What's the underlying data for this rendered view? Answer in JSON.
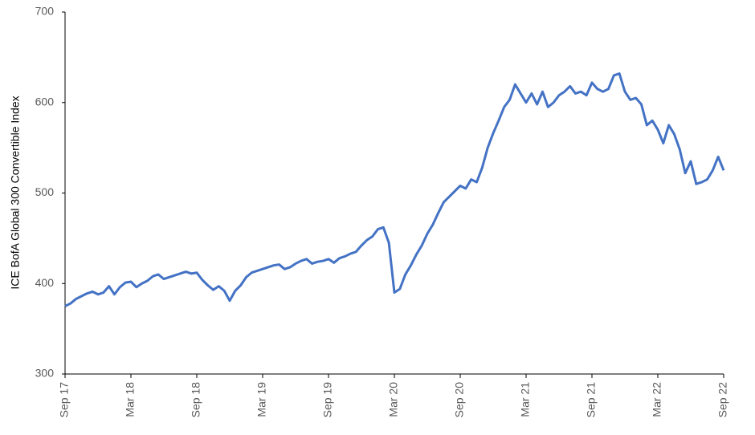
{
  "chart_data": {
    "type": "line",
    "y_label": "ICE BofA Global 300 Convertible Index",
    "categories": [
      "Sep 17",
      null,
      null,
      null,
      null,
      null,
      null,
      null,
      null,
      null,
      null,
      null,
      "Mar 18",
      null,
      null,
      null,
      null,
      null,
      null,
      null,
      null,
      null,
      null,
      null,
      "Sep 18",
      null,
      null,
      null,
      null,
      null,
      null,
      null,
      null,
      null,
      null,
      null,
      "Mar 19",
      null,
      null,
      null,
      null,
      null,
      null,
      null,
      null,
      null,
      null,
      null,
      "Sep 19",
      null,
      null,
      null,
      null,
      null,
      null,
      null,
      null,
      null,
      null,
      null,
      "Mar 20",
      null,
      null,
      null,
      null,
      null,
      null,
      null,
      null,
      null,
      null,
      null,
      "Sep 20",
      null,
      null,
      null,
      null,
      null,
      null,
      null,
      null,
      null,
      null,
      null,
      "Mar 21",
      null,
      null,
      null,
      null,
      null,
      null,
      null,
      null,
      null,
      null,
      null,
      "Sep 21",
      null,
      null,
      null,
      null,
      null,
      null,
      null,
      null,
      null,
      null,
      null,
      "Mar 22",
      null,
      null,
      null,
      null,
      null,
      null,
      null,
      null,
      null,
      null,
      null,
      "Sep 22"
    ],
    "values": [
      375,
      378,
      383,
      386,
      389,
      391,
      388,
      390,
      397,
      388,
      396,
      401,
      402,
      396,
      400,
      403,
      408,
      410,
      405,
      407,
      409,
      411,
      413,
      411,
      412,
      404,
      398,
      393,
      397,
      392,
      381,
      392,
      398,
      407,
      412,
      414,
      416,
      418,
      420,
      421,
      416,
      418,
      422,
      425,
      427,
      422,
      424,
      425,
      427,
      423,
      428,
      430,
      433,
      435,
      442,
      448,
      452,
      460,
      462,
      445,
      390,
      394,
      410,
      420,
      432,
      442,
      455,
      465,
      478,
      490,
      496,
      502,
      508,
      505,
      515,
      512,
      528,
      550,
      566,
      580,
      595,
      603,
      620,
      610,
      600,
      610,
      598,
      612,
      595,
      600,
      608,
      612,
      618,
      610,
      612,
      608,
      622,
      615,
      612,
      615,
      630,
      632,
      612,
      603,
      605,
      598,
      575,
      580,
      570,
      555,
      575,
      565,
      548,
      522,
      535,
      510,
      512,
      515,
      525,
      540,
      525
    ],
    "color": "#4472c4",
    "ylim": [
      300,
      700
    ],
    "yticks": [
      300,
      400,
      500,
      600,
      700
    ],
    "grid": false
  }
}
